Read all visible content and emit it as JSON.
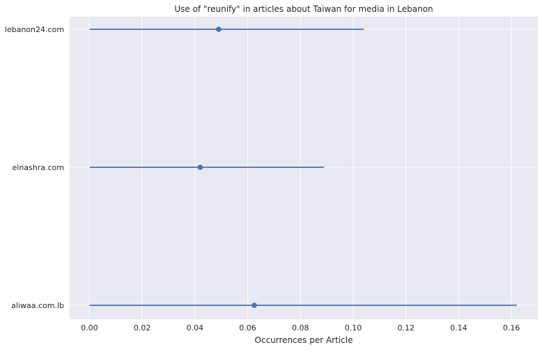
{
  "chart_data": {
    "type": "scatter",
    "title": "Use of \"reunify\" in articles about Taiwan for media in Lebanon",
    "xlabel": "Occurrences per Article",
    "ylabel": "",
    "xlim": [
      -0.0075,
      0.17
    ],
    "xticks": [
      0.0,
      0.02,
      0.04,
      0.06,
      0.08,
      0.1,
      0.12,
      0.14,
      0.16
    ],
    "xtick_labels": [
      "0.00",
      "0.02",
      "0.04",
      "0.06",
      "0.08",
      "0.10",
      "0.12",
      "0.14",
      "0.16"
    ],
    "grid": true,
    "categories": [
      "lebanon24.com",
      "elnashra.com",
      "aliwaa.com.lb"
    ],
    "values": [
      0.049,
      0.042,
      0.0625
    ],
    "ci_low": [
      0.0,
      0.0,
      0.0
    ],
    "ci_high": [
      0.104,
      0.089,
      0.162
    ],
    "colors": {
      "background": "#e8e8f0",
      "grid": "#ffffff",
      "series": "#4c72b0"
    }
  }
}
